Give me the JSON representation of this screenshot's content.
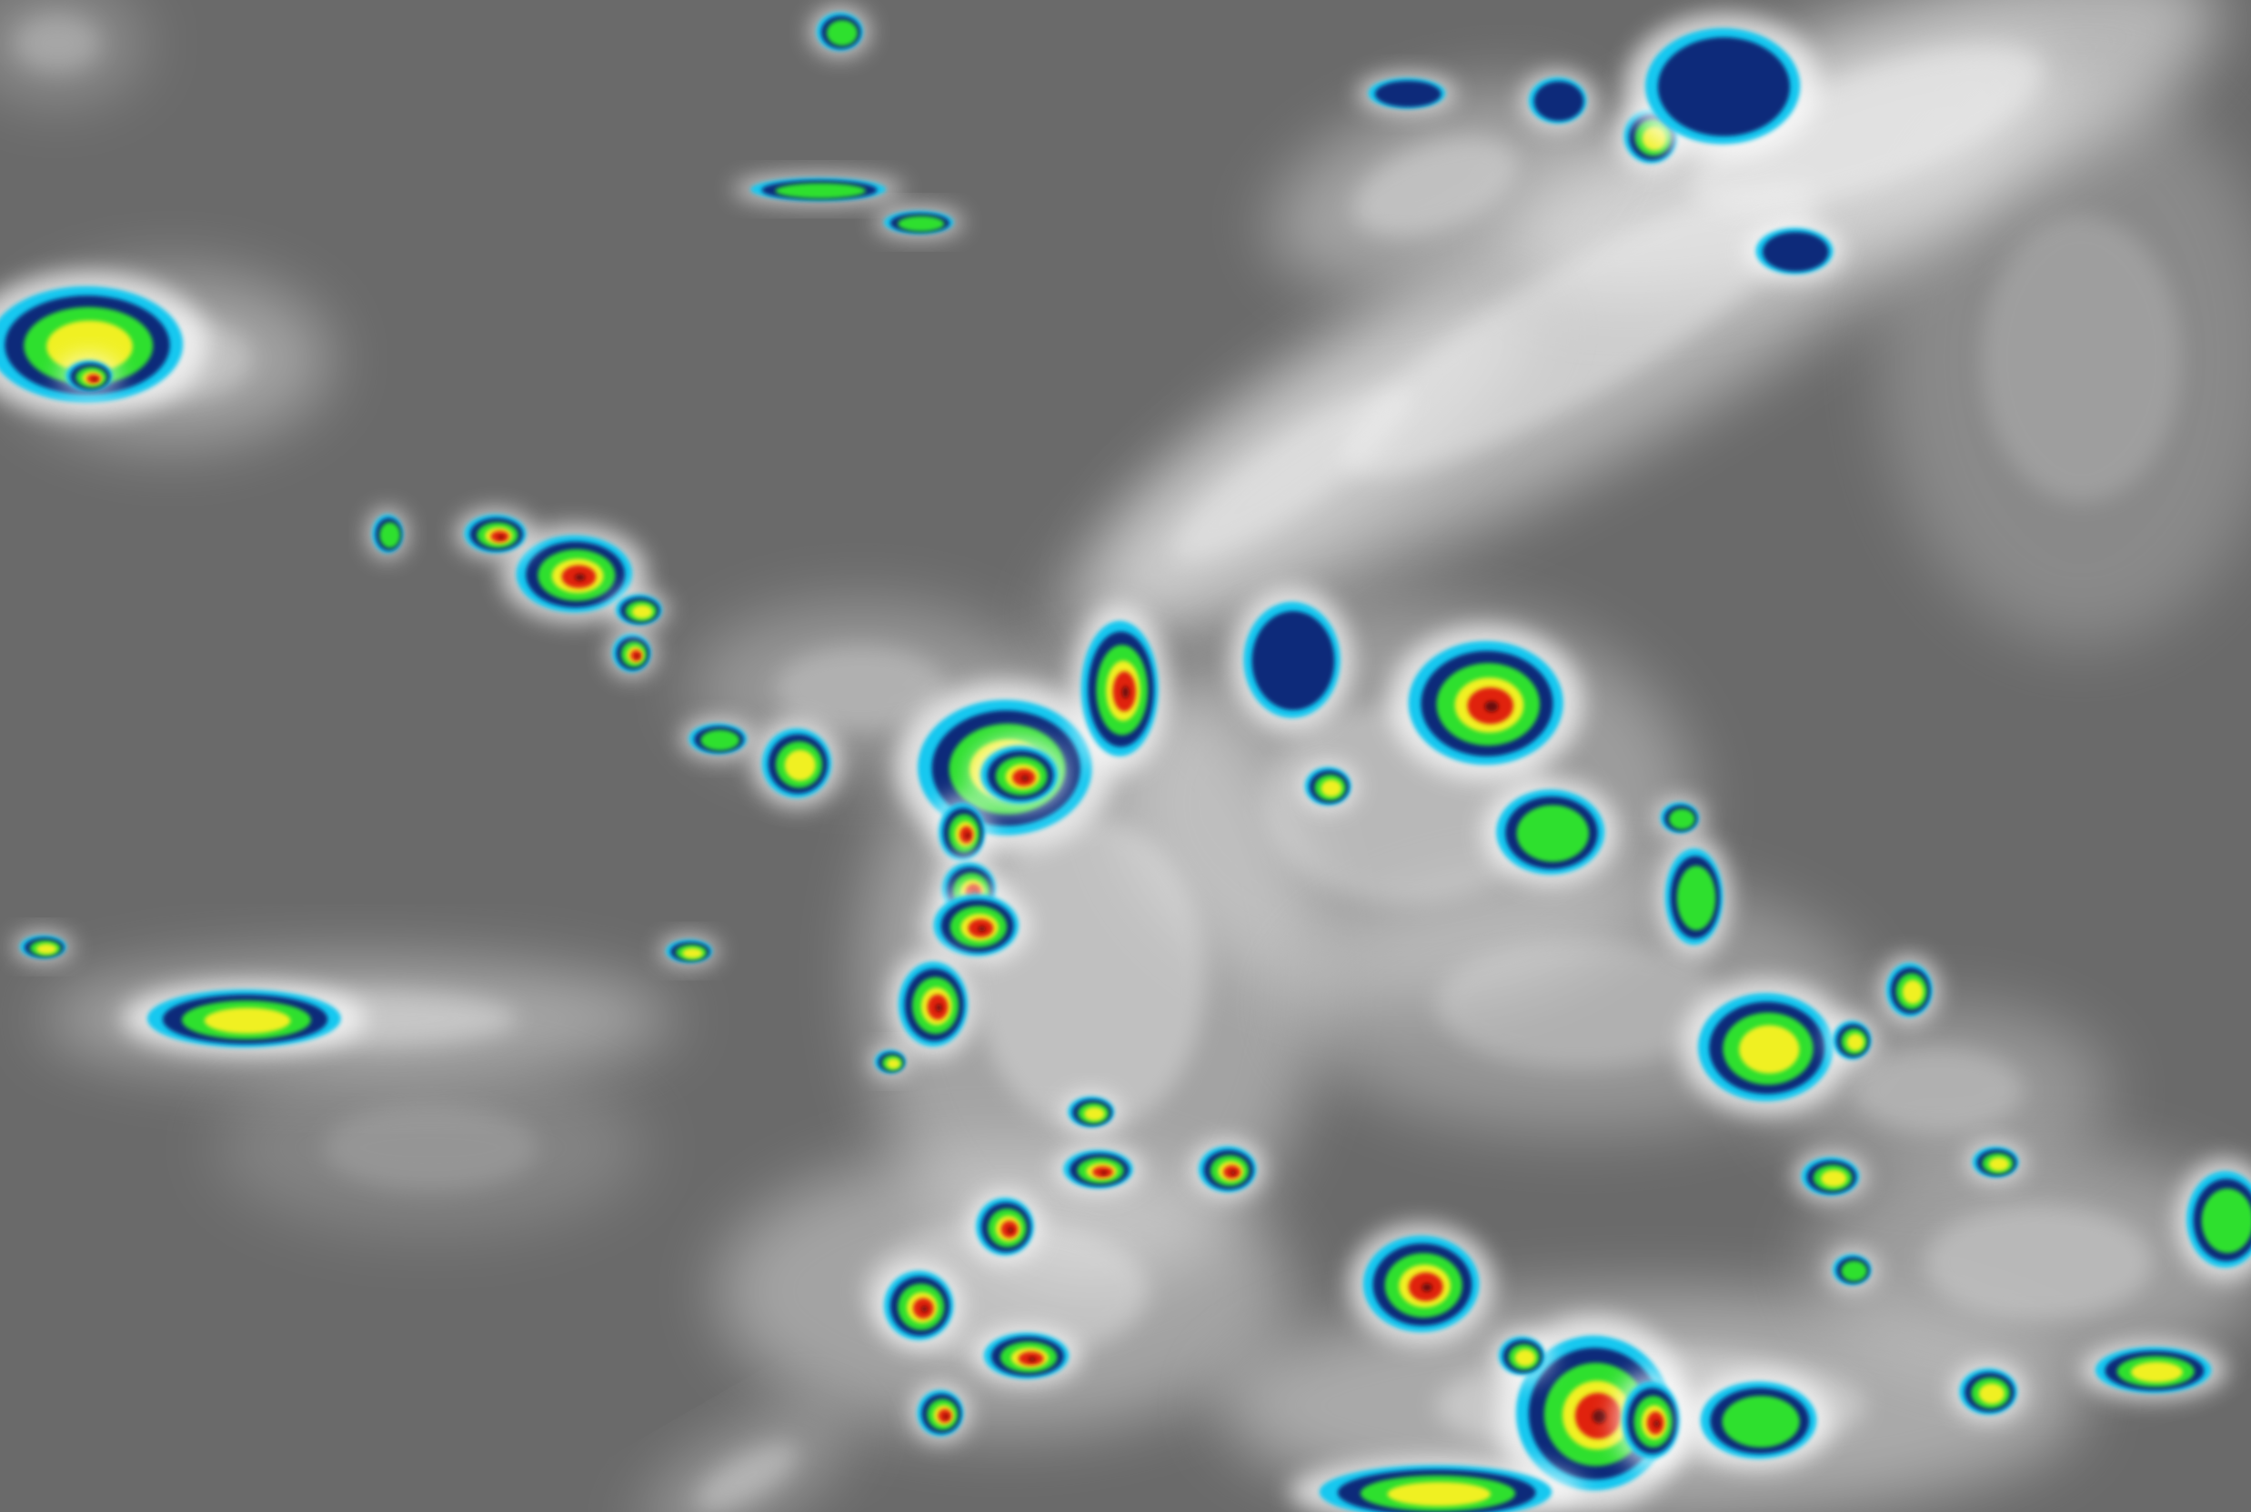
{
  "image": {
    "kind": "enhanced infrared satellite imagery",
    "palette": {
      "background": "#6a6a6a",
      "cloud_light": "#e8e8e8",
      "cold_dark_blue": "#0b2a7a",
      "cyan": "#19c8f0",
      "green": "#2ee02e",
      "yellow": "#f0f020",
      "red": "#e02010",
      "dark_red": "#6a0808"
    }
  }
}
